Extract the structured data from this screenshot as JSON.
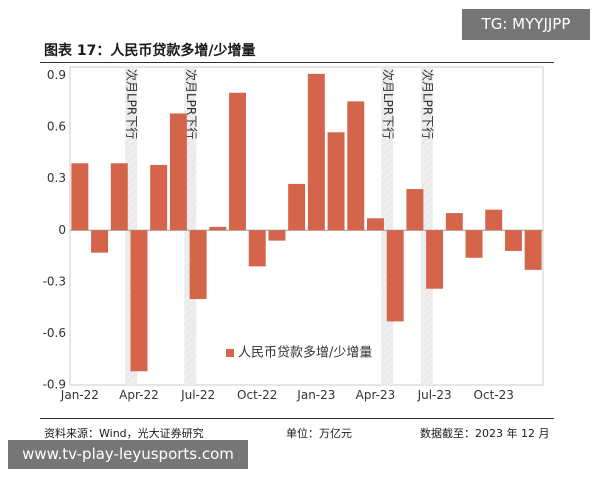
{
  "header": {
    "title": "图表 17：人民币贷款多增/少增量",
    "watermark_top": "TG: MYYJJPP"
  },
  "footer": {
    "source": "资料来源：Wind，光大证券研究",
    "unit": "单位：万亿元",
    "date": "数据截至：2023 年 12 月",
    "watermark_bottom": "www.tv-play-leyusports.com"
  },
  "colors": {
    "bar": "#d4654a",
    "shade": "#eeeeee",
    "axis": "#999999",
    "text": "#333333"
  },
  "chart_data": {
    "type": "bar",
    "categories": [
      "Jan-22",
      "Feb-22",
      "Mar-22",
      "Apr-22",
      "May-22",
      "Jun-22",
      "Jul-22",
      "Aug-22",
      "Sep-22",
      "Oct-22",
      "Nov-22",
      "Dec-22",
      "Jan-23",
      "Feb-23",
      "Mar-23",
      "Apr-23",
      "May-23",
      "Jun-23",
      "Jul-23",
      "Aug-23",
      "Sep-23",
      "Oct-23",
      "Nov-23",
      "Dec-23"
    ],
    "series": [
      {
        "name": "人民币贷款多增/少增量",
        "values": [
          0.39,
          -0.13,
          0.39,
          -0.82,
          0.38,
          0.68,
          -0.4,
          0.02,
          0.8,
          -0.21,
          -0.06,
          0.27,
          0.91,
          0.57,
          0.75,
          0.07,
          -0.53,
          0.24,
          -0.34,
          0.1,
          -0.16,
          0.12,
          -0.12,
          -0.23
        ]
      }
    ],
    "xticks": [
      "Jan-22",
      "Apr-22",
      "Jul-22",
      "Oct-22",
      "Jan-23",
      "Apr-23",
      "Jul-23",
      "Oct-23"
    ],
    "yticks": [
      "0.9",
      "0.6",
      "0.3",
      "0",
      "-0.3",
      "-0.6",
      "-0.9"
    ],
    "ylim": [
      -0.9,
      0.95
    ],
    "annotations": [
      {
        "after": "Mar-22",
        "label": "次月LPR下行"
      },
      {
        "after": "Jun-22",
        "label": "次月LPR下行"
      },
      {
        "after": "Apr-23",
        "label": "次月LPR下行"
      },
      {
        "after": "Jun-23",
        "label": "次月LPR下行"
      }
    ],
    "legend_position": "bottom-center",
    "grid": false
  }
}
